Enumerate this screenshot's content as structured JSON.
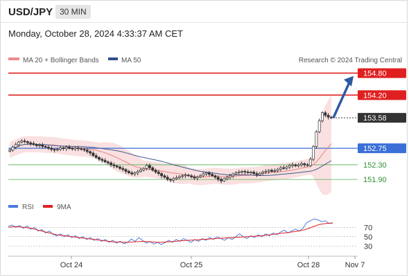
{
  "header": {
    "symbol": "USD/JPY",
    "timeframe": "30 MIN",
    "datetime": "Monday, October 28, 2024 4:33:37 AM CET"
  },
  "legend": {
    "ma20_bb": "MA 20 + Bollinger Bands",
    "ma50": "MA 50",
    "credit": "Research © 2024 Trading Central"
  },
  "rsi_legend": {
    "rsi": "RSI",
    "ma9": "9MA"
  },
  "colors": {
    "up_candle": "#ffffff",
    "down_candle": "#333333",
    "resistance": "#e02020",
    "pivot": "#3a6fd8",
    "support": "#4caf50",
    "bollinger_fill": "#f8d5d5",
    "ma20": "#e88080",
    "ma50": "#3d5a8c",
    "rsi": "#4a7be0",
    "rsi_ma": "#e02020",
    "arrow": "#2d5aa0"
  },
  "chart_data": [
    {
      "type": "candlestick",
      "title": "USD/JPY",
      "ylim": [
        151.6,
        155.0
      ],
      "x_tick_labels": [
        "Oct 24",
        "Oct 25",
        "Oct 28",
        "Nov 7"
      ],
      "levels": [
        {
          "label": "154.80",
          "value": 154.8,
          "kind": "resistance"
        },
        {
          "label": "154.20",
          "value": 154.2,
          "kind": "resistance"
        },
        {
          "label": "153.58",
          "value": 153.58,
          "kind": "last"
        },
        {
          "label": "152.75",
          "value": 152.75,
          "kind": "pivot"
        },
        {
          "label": "152.30",
          "value": 152.3,
          "kind": "support"
        },
        {
          "label": "151.90",
          "value": 151.9,
          "kind": "support"
        }
      ],
      "close_series": [
        152.7,
        152.78,
        152.85,
        152.92,
        152.95,
        152.93,
        152.9,
        152.88,
        152.85,
        152.82,
        152.84,
        152.8,
        152.78,
        152.75,
        152.72,
        152.7,
        152.72,
        152.76,
        152.74,
        152.78,
        152.75,
        152.73,
        152.76,
        152.74,
        152.72,
        152.7,
        152.66,
        152.62,
        152.55,
        152.5,
        152.45,
        152.42,
        152.38,
        152.35,
        152.3,
        152.27,
        152.24,
        152.2,
        152.17,
        152.12,
        152.08,
        152.05,
        152.08,
        152.12,
        152.16,
        152.2,
        152.28,
        152.22,
        152.15,
        152.1,
        152.06,
        152.0,
        151.96,
        151.9,
        151.88,
        151.92,
        151.95,
        151.98,
        152.0,
        152.02,
        152.0,
        151.97,
        151.94,
        151.97,
        152.0,
        152.05,
        152.08,
        152.04,
        152.0,
        151.96,
        151.9,
        151.86,
        151.92,
        151.96,
        152.0,
        152.05,
        152.08,
        152.1,
        152.12,
        152.1,
        152.08,
        152.1,
        152.06,
        152.03,
        152.07,
        152.1,
        152.12,
        152.15,
        152.12,
        152.14,
        152.18,
        152.22,
        152.2,
        152.24,
        152.28,
        152.3,
        152.27,
        152.3,
        152.33,
        152.3,
        152.28,
        152.45,
        152.8,
        153.2,
        153.5,
        153.72,
        153.65,
        153.6,
        153.58
      ]
    },
    {
      "type": "line",
      "title": "RSI",
      "ylim": [
        20,
        100
      ],
      "y_tick_labels": [
        "70",
        "50",
        "30"
      ],
      "series": [
        {
          "name": "RSI",
          "values": [
            72,
            75,
            70,
            74,
            68,
            73,
            66,
            70,
            62,
            65,
            58,
            62,
            55,
            52,
            56,
            50,
            54,
            48,
            52,
            46,
            50,
            44,
            48,
            42,
            46,
            40,
            44,
            38,
            42,
            36,
            40,
            35,
            38,
            45,
            40,
            48,
            42,
            36,
            40,
            34,
            38,
            33,
            37,
            42,
            38,
            44,
            40,
            46,
            42,
            38,
            44,
            40,
            46,
            42,
            48,
            44,
            50,
            46,
            42,
            48,
            44,
            50,
            56,
            50,
            46,
            52,
            48,
            54,
            50,
            56,
            52,
            58,
            54,
            60,
            64,
            58,
            62,
            66,
            62,
            68,
            80,
            84,
            88,
            86,
            82,
            84,
            78,
            80
          ]
        },
        {
          "name": "9MA",
          "values": [
            70,
            71,
            71.5,
            71,
            70,
            69,
            68,
            66,
            64,
            62,
            60,
            58,
            56,
            54,
            53,
            52,
            51,
            50,
            49,
            48,
            47,
            46,
            45,
            44,
            43,
            42,
            41,
            40,
            39,
            39,
            38.5,
            38,
            38,
            38.5,
            39,
            39.5,
            40,
            39.5,
            39,
            38.5,
            38,
            38,
            38.5,
            39,
            39.5,
            40,
            41,
            41.5,
            42,
            42.5,
            43,
            43.5,
            44,
            44.5,
            45,
            45.5,
            46,
            46.5,
            47,
            47.5,
            48,
            48.5,
            49,
            49.5,
            50,
            50.5,
            51,
            51.5,
            52,
            53,
            54,
            55,
            56,
            57,
            58,
            59,
            60,
            61,
            62,
            64,
            66,
            69,
            72,
            75,
            77,
            78,
            79,
            79
          ]
        }
      ]
    }
  ]
}
